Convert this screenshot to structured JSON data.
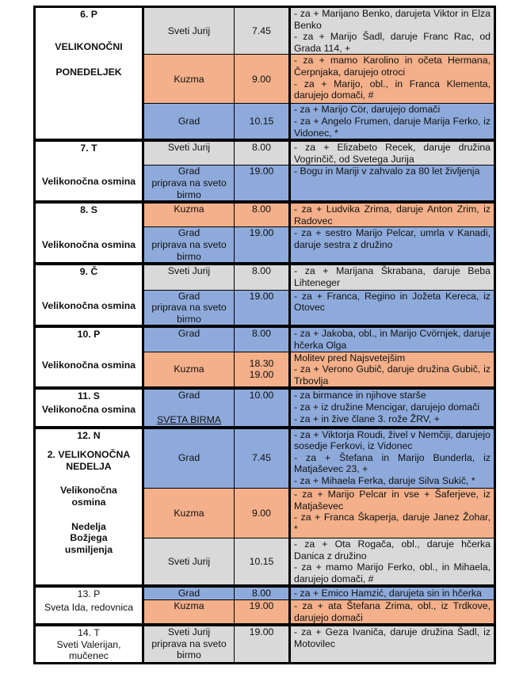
{
  "colors": {
    "gray": "#d9d9d9",
    "orange": "#f3b08a",
    "blue": "#8eaadb"
  },
  "days": [
    {
      "title": "6. P",
      "subtitle": [
        "VELIKONOČNI",
        "PONEDELJEK"
      ],
      "bold": true,
      "masses": [
        {
          "location": [
            "Sveti Jurij"
          ],
          "time": [
            "7.45"
          ],
          "color": "gray",
          "intentions": [
            "- za + Marijano Benko, darujeta Viktor in Elza Benko",
            "- za + Marijo Šadl, daruje Franc Rac, od Grada 114, +"
          ]
        },
        {
          "location": [
            "Kuzma"
          ],
          "time": [
            "9.00"
          ],
          "color": "orange",
          "intentions": [
            "- za + mamo Karolino in očeta Hermana, Čerpnjaka, darujejo otroci",
            "- za + Marijo, obl., in Franca Klementa, darujejo domači, #"
          ]
        },
        {
          "location": [
            "Grad"
          ],
          "time": [
            "10.15"
          ],
          "color": "blue",
          "intentions": [
            "- za + Marijo Cör, darujejo domači",
            "- za + Angelo Frumen, daruje Marija Ferko, iz Vidonec, *"
          ]
        }
      ]
    },
    {
      "title": "7. T",
      "subtitle": [
        "Velikonočna osmina"
      ],
      "bold": true,
      "masses": [
        {
          "location": [
            "Sveti Jurij"
          ],
          "time": [
            "8.00"
          ],
          "color": "gray",
          "intentions": [
            "- za + Elizabeto Recek, daruje družina Vogrinčič, od Svetega Jurija"
          ]
        },
        {
          "location": [
            "Grad",
            "priprava na sveto birmo"
          ],
          "time": [
            "19.00"
          ],
          "color": "blue",
          "intentions": [
            "- Bogu in Mariji v zahvalo za 80 let življenja"
          ]
        }
      ]
    },
    {
      "title": "8. S",
      "subtitle": [
        "Velikonočna osmina"
      ],
      "bold": true,
      "masses": [
        {
          "location": [
            "Kuzma"
          ],
          "time": [
            "8.00"
          ],
          "color": "orange",
          "intentions": [
            "- za + Ludvika Zrima, daruje Anton Zrim, iz Radovec"
          ]
        },
        {
          "location": [
            "Grad",
            "priprava na sveto birmo"
          ],
          "time": [
            "19.00"
          ],
          "color": "blue",
          "intentions": [
            "- za + sestro Marijo Pelcar, umrla v Kanadi, daruje sestra z družino"
          ]
        }
      ]
    },
    {
      "title": "9. Č",
      "subtitle": [
        "Velikonočna osmina"
      ],
      "bold": true,
      "masses": [
        {
          "location": [
            "Sveti Jurij"
          ],
          "time": [
            "8.00"
          ],
          "color": "gray",
          "intentions": [
            "- za + Marijana Škrabana, daruje Beba Lihteneger"
          ]
        },
        {
          "location": [
            "Grad",
            "priprava na sveto birmo"
          ],
          "time": [
            "19.00"
          ],
          "color": "blue",
          "intentions": [
            "- za + Franca, Regino in Jožeta Kereca, iz Otovec"
          ]
        }
      ]
    },
    {
      "title": "10. P",
      "subtitle": [
        "Velikonočna osmina"
      ],
      "bold": true,
      "masses": [
        {
          "location": [
            "Grad"
          ],
          "time": [
            "8.00"
          ],
          "color": "blue",
          "intentions": [
            "- za + Jakoba, obl., in Marijo Cvörnjek, daruje hčerka Olga"
          ]
        },
        {
          "location": [
            "Kuzma"
          ],
          "time": [
            "18.30",
            "19.00"
          ],
          "color": "orange",
          "intentions": [
            "Molitev pred Najsvetejšim",
            "- za + Verono Gubič, daruje družina Gubič, iz Trbovlja"
          ]
        }
      ]
    },
    {
      "title": "11. S",
      "subtitle": [
        "Velikonočna osmina"
      ],
      "bold": true,
      "masses": [
        {
          "location": [
            "Grad",
            "SVETA BIRMA"
          ],
          "time": [
            "10.00"
          ],
          "color": "blue",
          "intentions": [
            "- za birmance in njihove starše",
            "- za + iz družine Mencigar, darujejo domači",
            "- za + in žive člane 3. rože ŽRV, +"
          ]
        }
      ]
    },
    {
      "title": "12. N",
      "subtitle": [
        "2. VELIKONOČNA NEDELJA",
        "Velikonočna osmina",
        "Nedelja Božjega usmiljenja"
      ],
      "bold": true,
      "masses": [
        {
          "location": [
            "Grad"
          ],
          "time": [
            "7.45"
          ],
          "color": "blue",
          "intentions": [
            "- za + Viktorja Roudi, živel v Nemčiji, darujejo sosedje Ferkovi, iz Vidonec",
            "- za + Štefana in Marijo Bunderla, iz Matjaševec 23, +",
            "- za + Mihaela Ferka, daruje Silva Sukič, *"
          ]
        },
        {
          "location": [
            "Kuzma"
          ],
          "time": [
            "9.00"
          ],
          "color": "orange",
          "intentions": [
            "- za + Marijo Pelcar in vse + Šaferjeve, iz Matjaševec",
            "- za + Franca Škaperja, daruje Janez Žohar, *"
          ]
        },
        {
          "location": [
            "Sveti Jurij"
          ],
          "time": [
            "10.15"
          ],
          "color": "gray",
          "intentions": [
            "- za + Ota Rogača, obl., daruje hčerka Danica z družino",
            "- za + mamo Marijo Ferko, obl., in Mihaela, darujejo domači, #"
          ]
        }
      ]
    },
    {
      "title": "13. P",
      "subtitle": [
        "Sveta Ida, redovnica"
      ],
      "bold": false,
      "masses": [
        {
          "location": [
            "Grad"
          ],
          "time": [
            "8.00"
          ],
          "color": "blue",
          "intentions": [
            "- za + Emico Hamzić, darujeta sin in hčerka"
          ]
        },
        {
          "location": [
            "Kuzma"
          ],
          "time": [
            "19.00"
          ],
          "color": "orange",
          "intentions": [
            "- za + ata Štefana Zrima, obl., iz Trdkove, darujejo domači"
          ]
        }
      ]
    },
    {
      "title": "14. T",
      "subtitle": [
        "Sveti Valerijan, mučenec"
      ],
      "bold": false,
      "masses": [
        {
          "location": [
            "Sveti Jurij",
            "priprava na sveto birmo"
          ],
          "time": [
            "19.00"
          ],
          "color": "gray",
          "intentions": [
            "- za + Geza Ivaniča, daruje družina Šadl, iz Motovilec"
          ]
        }
      ]
    }
  ]
}
